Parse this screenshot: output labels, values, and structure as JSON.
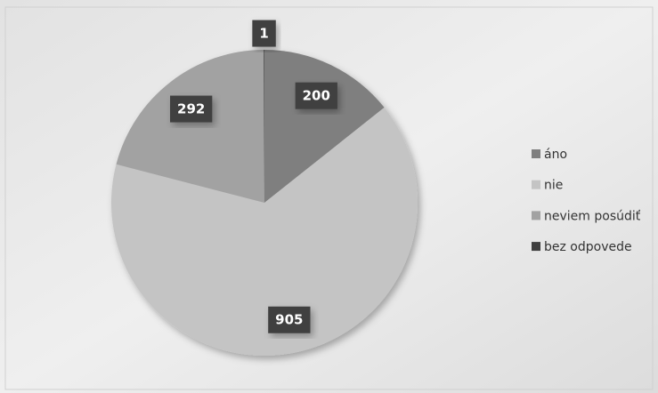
{
  "chart_data": {
    "type": "pie",
    "categories": [
      "áno",
      "nie",
      "neviem posúdiť",
      "bez odpovede"
    ],
    "values": [
      200,
      905,
      292,
      1
    ],
    "colors": [
      "#7f7f7f",
      "#c4c4c4",
      "#a2a2a2",
      "#3f3f3f"
    ],
    "legend": "right"
  }
}
